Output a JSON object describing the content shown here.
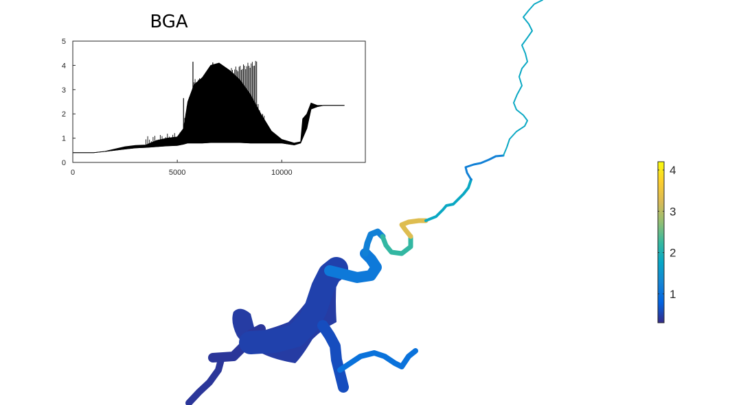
{
  "chart_data": [
    {
      "type": "line",
      "title": "BGA",
      "xlabel": "",
      "ylabel": "",
      "xlim": [
        0,
        14000
      ],
      "ylim": [
        0,
        5
      ],
      "x_ticks": [
        0,
        5000,
        10000
      ],
      "y_ticks": [
        0,
        1,
        2,
        3,
        4,
        5
      ],
      "grid": false,
      "series_color": "#000000",
      "profile": {
        "x": [
          0,
          1000,
          1500,
          2000,
          2500,
          3000,
          3500,
          4000,
          4500,
          5000,
          5300,
          5500,
          5800,
          6200,
          6600,
          7000,
          7500,
          8000,
          8500,
          9000,
          9500,
          10000,
          10600,
          10900,
          11000,
          11200,
          11400,
          11700,
          12000,
          13000
        ],
        "lower": [
          0.4,
          0.4,
          0.45,
          0.5,
          0.55,
          0.6,
          0.62,
          0.65,
          0.68,
          0.7,
          0.75,
          0.8,
          0.8,
          0.8,
          0.82,
          0.82,
          0.82,
          0.82,
          0.8,
          0.8,
          0.8,
          0.8,
          0.72,
          0.8,
          1.0,
          1.4,
          2.2,
          2.3,
          2.35,
          2.35
        ],
        "upper": [
          0.4,
          0.4,
          0.45,
          0.55,
          0.65,
          0.7,
          0.72,
          0.9,
          1.0,
          1.05,
          1.4,
          2.5,
          3.2,
          3.5,
          4.0,
          4.1,
          3.8,
          3.4,
          2.8,
          2.0,
          1.3,
          0.95,
          0.8,
          0.85,
          1.8,
          2.0,
          2.45,
          2.35,
          2.35,
          2.35
        ],
        "spikes": [
          {
            "x_from": 3500,
            "x_to": 5300,
            "count": 22,
            "peak_from": 0.95,
            "peak_to": 1.15
          },
          {
            "x_from": 5300,
            "x_to": 5800,
            "count": 10,
            "peak_from": 1.6,
            "peak_to": 2.6
          },
          {
            "x_from": 5800,
            "x_to": 8800,
            "count": 58,
            "peak_from": 3.3,
            "peak_to": 4.1
          },
          {
            "x_from": 8800,
            "x_to": 9300,
            "count": 8,
            "peak_from": 2.4,
            "peak_to": 1.6
          }
        ],
        "peaks": [
          {
            "x": 5750,
            "y": 4.15
          },
          {
            "x": 6700,
            "y": 4.12
          },
          {
            "x": 5300,
            "y": 2.65
          }
        ]
      }
    },
    {
      "type": "heatmap",
      "title": "",
      "colorbar": {
        "range": [
          0.3,
          4.2
        ],
        "ticks": [
          1,
          2,
          3,
          4
        ],
        "tick_labels": [
          "1",
          "2",
          "3",
          "4"
        ],
        "colormap": "parula",
        "colors": [
          "#352a87",
          "#0363e1",
          "#1485d4",
          "#06a7c6",
          "#38b99e",
          "#92bf73",
          "#d9ba56",
          "#fcce2e",
          "#f9fb0e"
        ]
      },
      "river_segments": [
        {
          "value": 0.4,
          "width": 10,
          "points": [
            [
              275,
              588
            ],
            [
              290,
              572
            ],
            [
              305,
              558
            ],
            [
              318,
              540
            ],
            [
              322,
              525
            ],
            [
              310,
              522
            ]
          ]
        },
        {
          "value": 0.4,
          "width": 14,
          "points": [
            [
              310,
              522
            ],
            [
              340,
              520
            ],
            [
              355,
              505
            ],
            [
              365,
              488
            ],
            [
              380,
              480
            ]
          ]
        },
        {
          "value": 0.5,
          "width": 34,
          "points": [
            [
              365,
              500
            ],
            [
              400,
              498
            ],
            [
              430,
              490
            ],
            [
              450,
              470
            ],
            [
              460,
              450
            ],
            [
              470,
              420
            ],
            [
              480,
              400
            ],
            [
              490,
              392
            ]
          ]
        },
        {
          "value": 0.6,
          "width": 16,
          "points": [
            [
              470,
              475
            ],
            [
              480,
              490
            ],
            [
              488,
              505
            ],
            [
              490,
              525
            ],
            [
              495,
              545
            ],
            [
              500,
              565
            ]
          ]
        },
        {
          "value": 1.0,
          "width": 8,
          "points": [
            [
              495,
              540
            ],
            [
              510,
              530
            ],
            [
              525,
              520
            ],
            [
              545,
              515
            ],
            [
              560,
              520
            ],
            [
              575,
              530
            ],
            [
              585,
              535
            ],
            [
              595,
              520
            ],
            [
              605,
              512
            ]
          ]
        },
        {
          "value": 1.1,
          "width": 16,
          "points": [
            [
              480,
              395
            ],
            [
              500,
              400
            ],
            [
              520,
              405
            ],
            [
              540,
              402
            ],
            [
              548,
              390
            ],
            [
              540,
              378
            ],
            [
              532,
              370
            ]
          ]
        },
        {
          "value": 1.2,
          "width": 9,
          "points": [
            [
              532,
              370
            ],
            [
              535,
              355
            ],
            [
              540,
              342
            ],
            [
              550,
              338
            ],
            [
              557,
              345
            ]
          ]
        },
        {
          "value": 2.2,
          "width": 7,
          "points": [
            [
              557,
              345
            ],
            [
              562,
              358
            ],
            [
              570,
              368
            ],
            [
              585,
              370
            ],
            [
              598,
              360
            ],
            [
              598,
              345
            ]
          ]
        },
        {
          "value": 3.3,
          "width": 7,
          "points": [
            [
              598,
              345
            ],
            [
              590,
              335
            ],
            [
              585,
              328
            ],
            [
              595,
              324
            ],
            [
              610,
              322
            ],
            [
              620,
              322
            ]
          ]
        },
        {
          "value": 1.8,
          "width": 4,
          "points": [
            [
              620,
              322
            ],
            [
              635,
              316
            ],
            [
              645,
              306
            ],
            [
              650,
              300
            ],
            [
              660,
              298
            ],
            [
              668,
              290
            ],
            [
              675,
              283
            ],
            [
              682,
              274
            ],
            [
              686,
              262
            ]
          ]
        },
        {
          "value": 1.2,
          "width": 3,
          "points": [
            [
              686,
              262
            ],
            [
              680,
              252
            ],
            [
              678,
              244
            ],
            [
              690,
              240
            ],
            [
              700,
              238
            ],
            [
              712,
              233
            ],
            [
              722,
              228
            ],
            [
              733,
              227
            ]
          ]
        },
        {
          "value": 1.8,
          "width": 2,
          "points": [
            [
              733,
              227
            ],
            [
              738,
              215
            ],
            [
              742,
              203
            ],
            [
              752,
              192
            ],
            [
              764,
              184
            ],
            [
              768,
              176
            ],
            [
              762,
              168
            ],
            [
              752,
              160
            ],
            [
              748,
              150
            ],
            [
              753,
              138
            ],
            [
              760,
              125
            ],
            [
              756,
              112
            ],
            [
              760,
              100
            ],
            [
              768,
              90
            ],
            [
              765,
              78
            ],
            [
              760,
              66
            ],
            [
              768,
              55
            ],
            [
              775,
              45
            ],
            [
              770,
              35
            ],
            [
              762,
              25
            ],
            [
              770,
              15
            ],
            [
              778,
              6
            ],
            [
              790,
              0
            ]
          ]
        }
      ]
    }
  ]
}
